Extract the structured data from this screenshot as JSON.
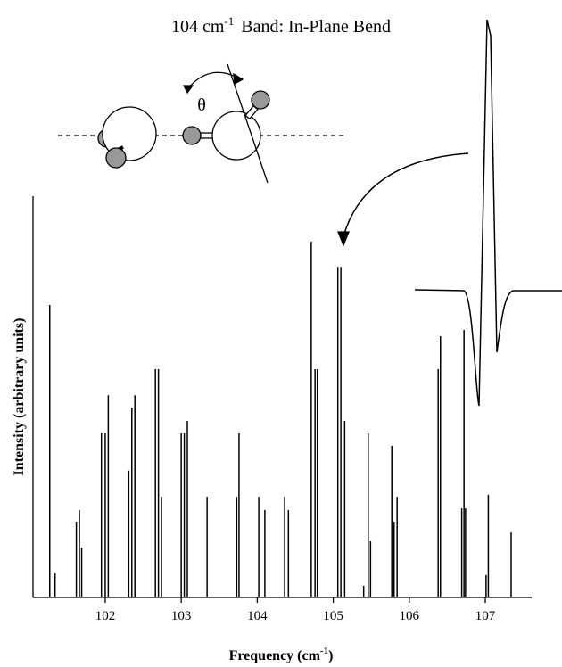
{
  "chart_data": {
    "type": "stick",
    "title_parts": [
      "104 cm",
      "-1",
      "Band:  In-Plane Bend"
    ],
    "xlabel_parts": [
      "Frequency (cm",
      "-1",
      ")"
    ],
    "ylabel": "Intensity (arbitrary units)",
    "diagram_label": "θ",
    "color": "#000000",
    "x": [
      101.27,
      101.34,
      101.62,
      101.66,
      101.69,
      101.95,
      102.0,
      102.04,
      102.31,
      102.35,
      102.39,
      102.66,
      102.7,
      102.74,
      103.0,
      103.04,
      103.08,
      103.34,
      103.73,
      103.76,
      104.02,
      104.1,
      104.36,
      104.41,
      104.71,
      104.76,
      104.79,
      105.06,
      105.1,
      105.15,
      105.4,
      105.46,
      105.49,
      105.77,
      105.8,
      105.84,
      106.38,
      106.41,
      106.69,
      106.72,
      106.74,
      107.01,
      107.04,
      107.34
    ],
    "values": [
      72.9,
      6,
      18.9,
      21.8,
      12.4,
      40.9,
      40.9,
      50.4,
      31.6,
      47.3,
      50.4,
      56.9,
      56.9,
      25.1,
      40.9,
      40.9,
      44,
      25.1,
      25.1,
      40.9,
      25.1,
      21.8,
      25.1,
      21.8,
      88.7,
      56.9,
      56.9,
      82.4,
      82.4,
      44,
      2.9,
      40.9,
      14,
      37.8,
      18.9,
      25.1,
      56.9,
      65.1,
      22.2,
      66.7,
      22.2,
      5.6,
      25.6,
      16.2
    ],
    "xlim": [
      101.05,
      107.61
    ],
    "xticks": [
      102,
      103,
      104,
      105,
      106,
      107
    ],
    "ylim": [
      0,
      100
    ],
    "yticks": []
  }
}
